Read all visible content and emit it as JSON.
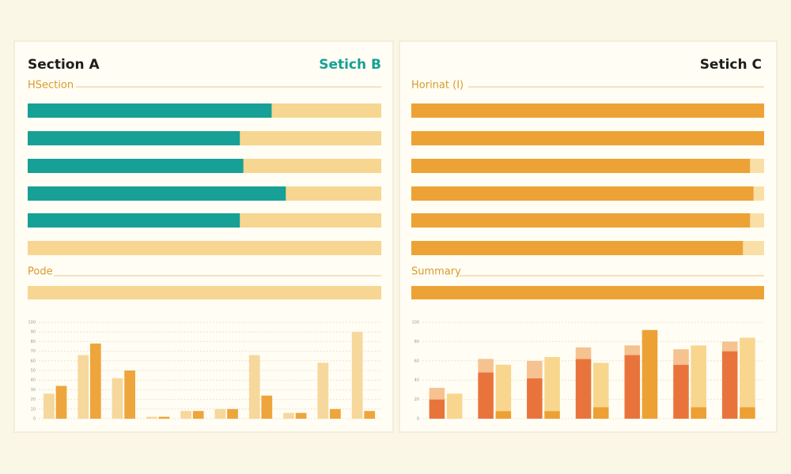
{
  "panels": [
    {
      "title": "Section A",
      "accent_title": "Setich B",
      "heading": "HSection",
      "progress": {
        "color": "#17a096",
        "track": "#f6d690",
        "values": [
          69,
          60,
          61,
          73,
          60,
          0
        ]
      },
      "summary_label": "Pode",
      "summary_value": 0
    },
    {
      "title": "Setich C",
      "heading": "Horinat (I)",
      "progress": {
        "color": "#eda235",
        "track": "#f9dfa6",
        "values": [
          100,
          100,
          96,
          97,
          96,
          94
        ]
      },
      "summary_label": "Summary",
      "summary_value": 100
    }
  ],
  "chart_data": [
    {
      "type": "bar",
      "ylim": [
        0,
        100
      ],
      "yticks": [
        0,
        10,
        20,
        30,
        40,
        50,
        60,
        70,
        80,
        90,
        100
      ],
      "grid": true,
      "series": [
        {
          "color": "#f6d79c",
          "values": [
            26,
            66,
            42,
            2,
            8,
            10,
            66,
            6,
            58,
            90
          ]
        },
        {
          "color": "#eda53c",
          "values": [
            34,
            78,
            50,
            2,
            8,
            10,
            24,
            6,
            10,
            8
          ]
        }
      ]
    },
    {
      "type": "stacked-bar",
      "ylim": [
        0,
        100
      ],
      "yticks": [
        0,
        20,
        40,
        60,
        80,
        100
      ],
      "grid": true,
      "series": [
        {
          "color": "#e8743b",
          "stack": "a",
          "values": [
            20,
            48,
            42,
            62,
            66,
            56,
            70
          ]
        },
        {
          "color": "#f5c290",
          "stack": "a",
          "values": [
            12,
            14,
            18,
            12,
            10,
            16,
            10
          ]
        },
        {
          "color": "#eda033",
          "stack": "b",
          "values": [
            0,
            8,
            8,
            12,
            92,
            12,
            12
          ]
        },
        {
          "color": "#f8d68e",
          "stack": "b",
          "values": [
            26,
            48,
            56,
            46,
            0,
            64,
            72
          ]
        }
      ]
    }
  ]
}
